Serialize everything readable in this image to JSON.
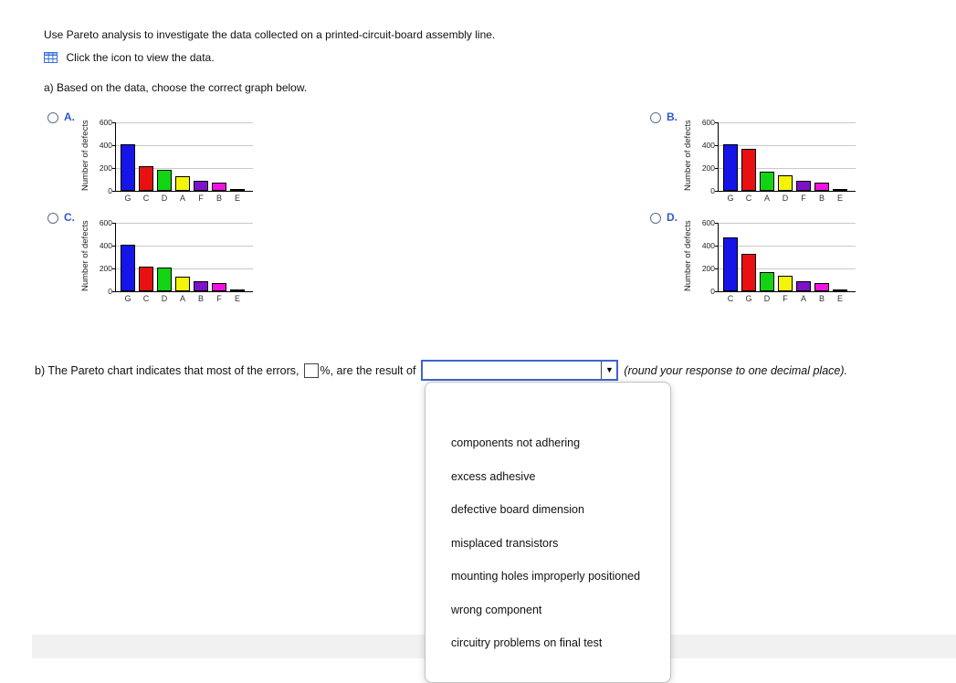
{
  "intro": {
    "line1": "Use Pareto analysis to investigate the data collected on a printed-circuit-board assembly line.",
    "icon_line": "Click the icon to view the data.",
    "part_a": "a) Based on the data, choose the correct graph below."
  },
  "icons": {
    "data_table": "table-grid-icon",
    "dropdown_arrow": "▼"
  },
  "chart_config": {
    "ylabel": "Number of defects",
    "ymax": 600,
    "ticks": [
      0,
      200,
      400,
      600
    ],
    "bar_colors": [
      "#1515e8",
      "#e81010",
      "#12d412",
      "#f4f40a",
      "#7d12c8",
      "#f012e0",
      "#10c060"
    ]
  },
  "options": [
    {
      "label": "A.",
      "chart": {
        "type": "bar",
        "categories": [
          "G",
          "C",
          "D",
          "A",
          "F",
          "B",
          "E"
        ],
        "values": [
          410,
          215,
          185,
          130,
          90,
          75,
          15
        ]
      }
    },
    {
      "label": "B.",
      "chart": {
        "type": "bar",
        "categories": [
          "G",
          "C",
          "A",
          "D",
          "F",
          "B",
          "E"
        ],
        "values": [
          410,
          370,
          170,
          135,
          90,
          75,
          15
        ]
      }
    },
    {
      "label": "C.",
      "chart": {
        "type": "bar",
        "categories": [
          "G",
          "C",
          "D",
          "A",
          "B",
          "F",
          "E"
        ],
        "values": [
          410,
          220,
          210,
          130,
          90,
          75,
          15
        ]
      }
    },
    {
      "label": "D.",
      "chart": {
        "type": "bar",
        "categories": [
          "C",
          "G",
          "D",
          "F",
          "A",
          "B",
          "E"
        ],
        "values": [
          470,
          330,
          170,
          135,
          90,
          75,
          15
        ]
      }
    }
  ],
  "part_b": {
    "text_before": "b) The Pareto chart indicates that most of the errors,",
    "text_after_box": "%, are the result of",
    "input_value": "",
    "select_value": "",
    "note": "(round your response to one decimal place)."
  },
  "dropdown": {
    "options": [
      "components not adhering",
      "excess adhesive",
      "defective board dimension",
      "misplaced transistors",
      "mounting holes improperly positioned",
      "wrong component",
      "circuitry problems on final test"
    ]
  }
}
